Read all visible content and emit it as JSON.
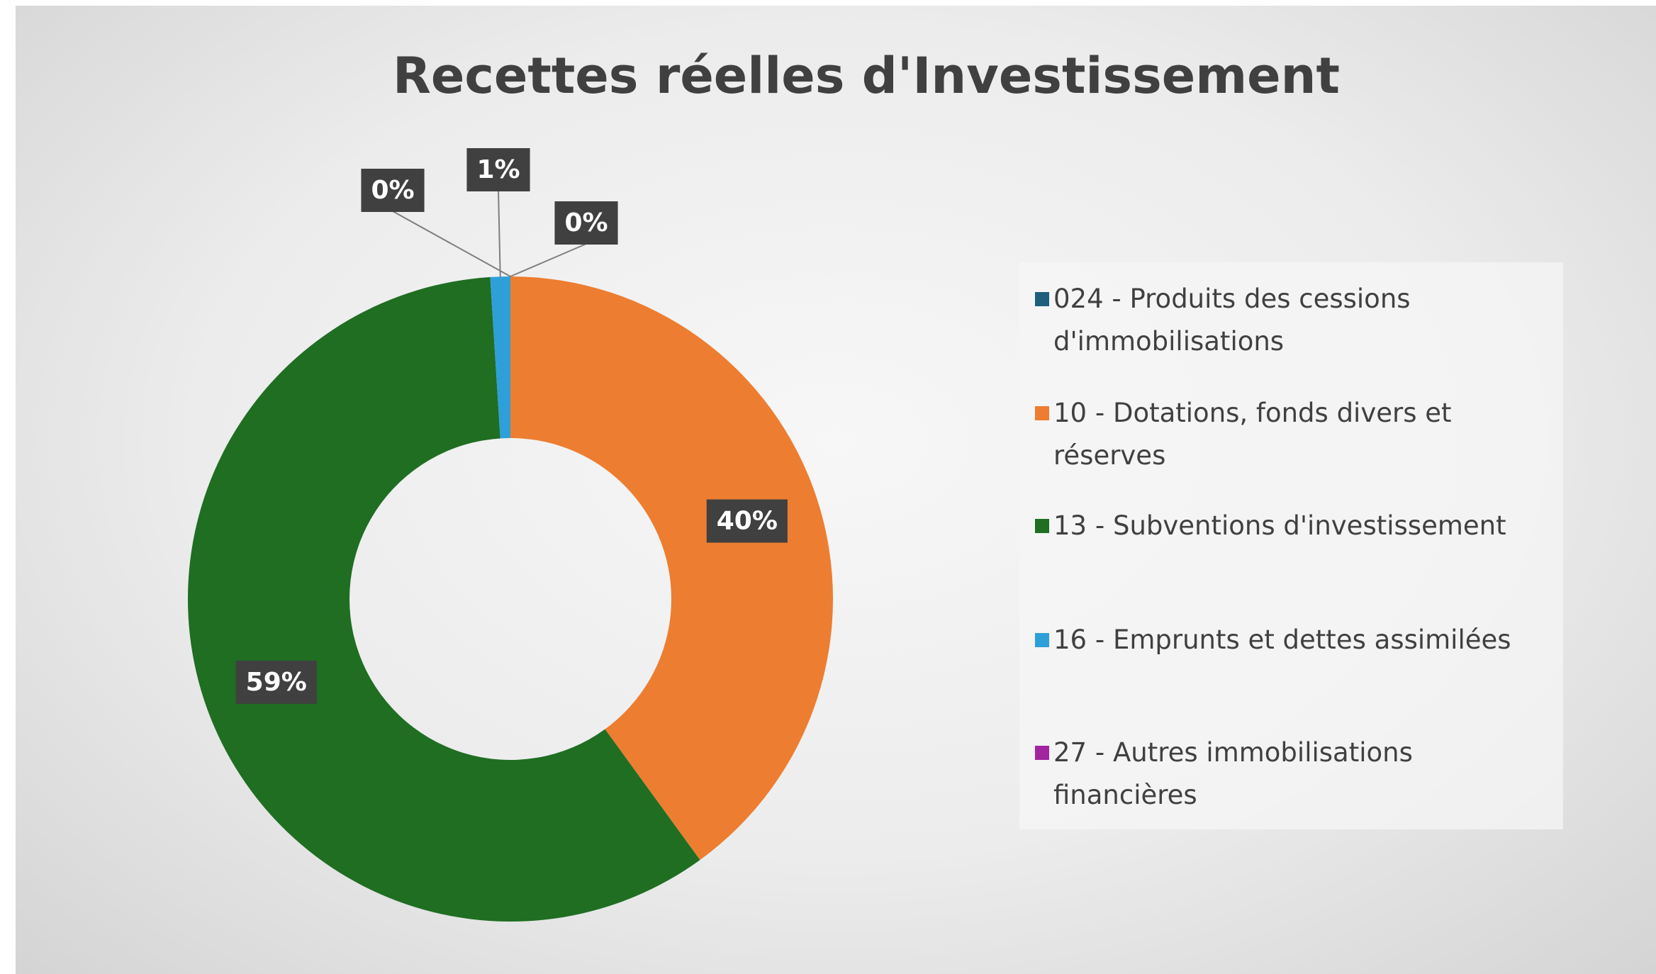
{
  "chart_data": {
    "type": "donut",
    "title": "Recettes réelles d'Investissement",
    "categories": [
      "024 - Produits des cessions d'immobilisations",
      "10 - Dotations, fonds divers et réserves",
      "13 - Subventions d'investissement",
      "16 - Emprunts et dettes assimilées",
      "27 - Autres immobilisations financières"
    ],
    "values": [
      0,
      40,
      59,
      1,
      0
    ],
    "value_labels": [
      "0%",
      "40%",
      "59%",
      "1%",
      "0%"
    ],
    "colors": [
      "#1f5e7c",
      "#ed7d31",
      "#1f6e22",
      "#2e9fd9",
      "#a0259e"
    ],
    "legend": "right"
  }
}
